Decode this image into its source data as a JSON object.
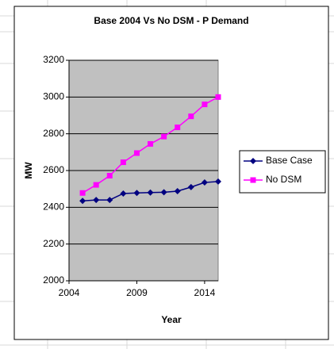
{
  "chart_data": {
    "type": "line",
    "title": "Base 2004 Vs No DSM - P Demand",
    "x_label": "Year",
    "y_label": "MW",
    "x": [
      2005,
      2006,
      2007,
      2008,
      2009,
      2010,
      2011,
      2012,
      2013,
      2014,
      2015
    ],
    "series": [
      {
        "name": "Base Case",
        "color": "#000080",
        "marker": "diamond",
        "values": [
          2435,
          2440,
          2440,
          2475,
          2478,
          2480,
          2482,
          2488,
          2510,
          2535,
          2540
        ]
      },
      {
        "name": "No DSM",
        "color": "#ff00ff",
        "marker": "square",
        "values": [
          2478,
          2522,
          2572,
          2645,
          2695,
          2745,
          2785,
          2835,
          2895,
          2960,
          3000
        ]
      }
    ],
    "xlim": [
      2004,
      2015
    ],
    "xticks": [
      2004,
      2009,
      2014
    ],
    "ylim": [
      2000,
      3200
    ],
    "yticks": [
      2000,
      2200,
      2400,
      2600,
      2800,
      3000,
      3200
    ],
    "grid": true,
    "legend": "right"
  }
}
